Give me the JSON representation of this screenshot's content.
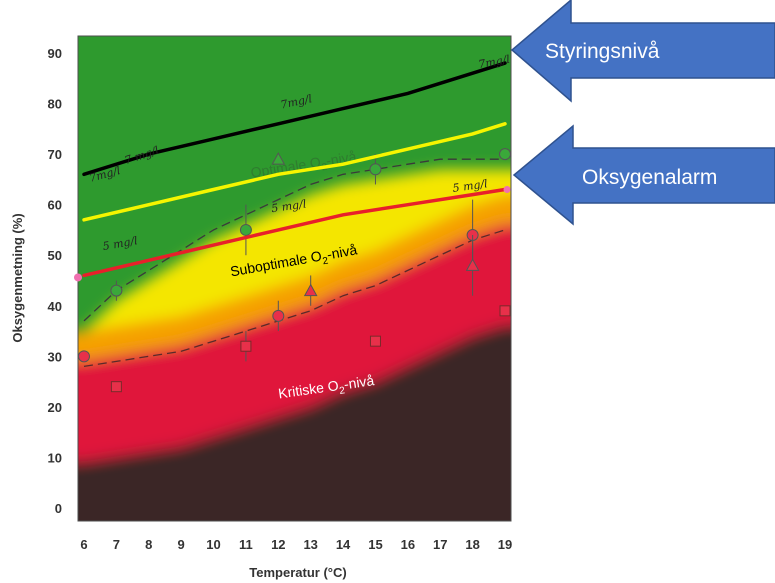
{
  "chart_data": {
    "type": "line",
    "title": "",
    "xlabel": "Temperatur (°C)",
    "ylabel": "Oksygenmetning (%)",
    "xlim": [
      6,
      19
    ],
    "ylim": [
      0,
      90
    ],
    "x_ticks": [
      6,
      7,
      8,
      9,
      10,
      11,
      12,
      13,
      14,
      15,
      16,
      17,
      18,
      19
    ],
    "y_ticks": [
      0,
      10,
      20,
      30,
      40,
      50,
      60,
      70,
      80,
      90
    ],
    "grid": false,
    "zones": [
      {
        "label_main": "Optimale O",
        "label_sub": "2",
        "label_tail": "-nivå",
        "color": "#2e9a2e",
        "label_color": "#2f7d2f",
        "label_x": 12.8,
        "label_y": 67,
        "rotate": -9
      },
      {
        "label_main": "Suboptimale O",
        "label_sub": "2",
        "label_tail": "-nivå",
        "color": "#f4e600",
        "label_color": "#000000",
        "label_x": 12.5,
        "label_y": 48,
        "rotate": -10
      },
      {
        "label_main": "Kritiske O",
        "label_sub": "2",
        "label_tail": "-nivå",
        "color": "#e0183a",
        "label_color": "#ffffff",
        "label_x": 13.5,
        "label_y": 23,
        "rotate": -8
      }
    ],
    "boundaries": [
      {
        "name": "optimal-suboptimal",
        "x": [
          6,
          7,
          8,
          9,
          10,
          11,
          12,
          13,
          14,
          15,
          16,
          17,
          18,
          19
        ],
        "y": [
          37,
          43,
          47,
          51,
          55,
          58,
          61,
          64,
          66,
          67,
          68,
          69,
          69,
          69
        ]
      },
      {
        "name": "suboptimal-critical",
        "x": [
          6,
          7,
          8,
          9,
          10,
          11,
          12,
          13,
          14,
          15,
          16,
          17,
          18,
          19
        ],
        "y": [
          28,
          29,
          30,
          31,
          33,
          35,
          37,
          39,
          42,
          44,
          47,
          50,
          53,
          55
        ]
      }
    ],
    "series": [
      {
        "name": "Styringsnivå",
        "color": "#000000",
        "x": [
          6,
          8,
          10,
          12,
          14,
          16,
          18,
          19
        ],
        "y": [
          66,
          70,
          73,
          76,
          79,
          82,
          86,
          88
        ]
      },
      {
        "name": "",
        "color": "#f5f500",
        "x": [
          6,
          8,
          10,
          12,
          14,
          16,
          18,
          19
        ],
        "y": [
          57,
          60,
          63,
          66,
          68,
          71,
          74,
          76
        ]
      },
      {
        "name": "Oksygenalarm",
        "color": "#e8202a",
        "x": [
          6,
          8,
          10,
          12,
          14,
          16,
          18,
          19
        ],
        "y": [
          46,
          49,
          52,
          55,
          58,
          60,
          62,
          63
        ]
      }
    ],
    "points": [
      {
        "shape": "circle",
        "color": "#3aa83a",
        "x": 7,
        "y": 43,
        "err": 2
      },
      {
        "shape": "circle",
        "color": "#3aa83a",
        "x": 11,
        "y": 55,
        "err": 5
      },
      {
        "shape": "circle",
        "color": "#3aa83a",
        "x": 15,
        "y": 67,
        "err": 3
      },
      {
        "shape": "circle",
        "color": "#3aa83a",
        "x": 19,
        "y": 70,
        "err": 0
      },
      {
        "shape": "triangle",
        "color": "#3aa83a",
        "x": 12,
        "y": 69,
        "err": 0
      },
      {
        "shape": "circle",
        "color": "#e8304a",
        "x": 6,
        "y": 30,
        "err": 0
      },
      {
        "shape": "circle",
        "color": "#e8304a",
        "x": 12,
        "y": 38,
        "err": 3
      },
      {
        "shape": "circle",
        "color": "#e8304a",
        "x": 18,
        "y": 54,
        "err": 7
      },
      {
        "shape": "triangle",
        "color": "#e8304a",
        "x": 13,
        "y": 43,
        "err": 3
      },
      {
        "shape": "triangle",
        "color": "#e8304a",
        "x": 18,
        "y": 48,
        "err": 6
      },
      {
        "shape": "square",
        "color": "#e8304a",
        "x": 7,
        "y": 24,
        "err": 0
      },
      {
        "shape": "square",
        "color": "#e8304a",
        "x": 11,
        "y": 32,
        "err": 3
      },
      {
        "shape": "square",
        "color": "#e8304a",
        "x": 15,
        "y": 33,
        "err": 0
      },
      {
        "shape": "square",
        "color": "#e8304a",
        "x": 19,
        "y": 39,
        "err": 0
      }
    ],
    "annotations": [
      {
        "text": "7 mg/l",
        "x": 7.3,
        "y": 68,
        "rotate": -18
      },
      {
        "text": "7mg/l",
        "x": 12.1,
        "y": 79,
        "rotate": -12
      },
      {
        "text": "7mg/l",
        "x": 18.2,
        "y": 87,
        "rotate": -10
      },
      {
        "text": "7mg/l",
        "x": 6.2,
        "y": 64.5,
        "rotate": -15
      },
      {
        "text": "5 mg/l",
        "x": 6.6,
        "y": 51,
        "rotate": -10
      },
      {
        "text": "5 mg/l",
        "x": 11.8,
        "y": 58.5,
        "rotate": -8
      },
      {
        "text": "5 mg/l",
        "x": 17.4,
        "y": 62.5,
        "rotate": -8
      }
    ],
    "callouts": [
      {
        "label": "Styringsnivå",
        "color": "#4472c4",
        "target": "Styringsnivå"
      },
      {
        "label": "Oksygenalarm",
        "color": "#4472c4",
        "target": "Oksygenalarm"
      }
    ]
  }
}
